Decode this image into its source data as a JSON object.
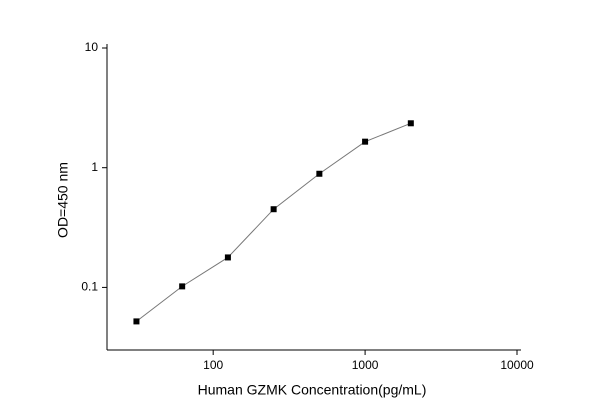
{
  "chart_data": {
    "type": "line",
    "x_label": "Human GZMK Concentration(pg/mL)",
    "y_label": "OD=450 nm",
    "x": [
      31.25,
      62.5,
      125,
      250,
      500,
      1000,
      2000
    ],
    "series": [
      {
        "color": "#000000",
        "values": [
          0.052,
          0.102,
          0.178,
          0.45,
          0.89,
          1.65,
          2.35
        ]
      }
    ],
    "xlim": [
      20,
      10000
    ],
    "ylim": [
      0.03,
      10
    ],
    "xticks": [
      100,
      1000,
      10000
    ],
    "yticks": [
      0.1,
      1,
      10
    ],
    "xscale": "log",
    "yscale": "log"
  }
}
